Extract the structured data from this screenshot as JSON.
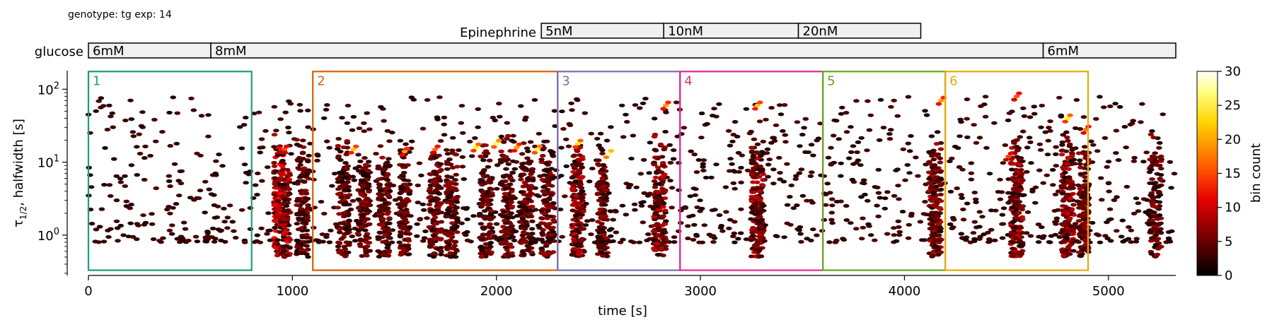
{
  "header": {
    "text": "genotype: tg  exp: 14"
  },
  "treatments": [
    {
      "name": "Epinephrine",
      "segments": [
        {
          "label": "5nM",
          "start": 2220,
          "end": 2820
        },
        {
          "label": "10nM",
          "start": 2820,
          "end": 3480
        },
        {
          "label": "20nM",
          "start": 3480,
          "end": 4080
        }
      ]
    },
    {
      "name": "glucose",
      "segments": [
        {
          "label": "6mM",
          "start": 0,
          "end": 600
        },
        {
          "label": "8mM",
          "start": 600,
          "end": 4680
        },
        {
          "label": "6mM",
          "start": 4680,
          "end": 5330
        }
      ]
    }
  ],
  "chart_data": {
    "type": "heatmap",
    "xlabel": "time [s]",
    "ylabel_main": "τ",
    "ylabel_sub": "1/2",
    "ylabel_rest": ", halfwidth [s]",
    "xlim": [
      0,
      5330
    ],
    "ylim": [
      0.28,
      180
    ],
    "yscale": "log",
    "xticks": [
      {
        "value": 0,
        "label": "0"
      },
      {
        "value": 1000,
        "label": "1000"
      },
      {
        "value": 2000,
        "label": "2000"
      },
      {
        "value": 3000,
        "label": "3000"
      },
      {
        "value": 4000,
        "label": "4000"
      },
      {
        "value": 5000,
        "label": "5000"
      }
    ],
    "yticks": [
      {
        "value": 1,
        "base": "10",
        "exp": "0"
      },
      {
        "value": 10,
        "base": "10",
        "exp": "1"
      },
      {
        "value": 100,
        "base": "10",
        "exp": "2"
      }
    ],
    "colorbar": {
      "label": "bin count",
      "min": 0,
      "max": 30,
      "ticks": [
        "0",
        "5",
        "10",
        "15",
        "20",
        "25",
        "30"
      ]
    },
    "regions": [
      {
        "label": "1",
        "x0": 0,
        "x1": 800,
        "color": "#1b9e77"
      },
      {
        "label": "2",
        "x0": 1100,
        "x1": 2300,
        "color": "#d95f02"
      },
      {
        "label": "3",
        "x0": 2300,
        "x1": 2900,
        "color": "#7570b3"
      },
      {
        "label": "4",
        "x0": 2900,
        "x1": 3600,
        "color": "#e7298a"
      },
      {
        "label": "5",
        "x0": 3600,
        "x1": 4200,
        "color": "#66a61e"
      },
      {
        "label": "6",
        "x0": 4200,
        "x1": 4900,
        "color": "#e6ab02"
      }
    ],
    "regions_y": [
      0.33,
      175
    ],
    "hot_bins": [
      {
        "t": 1300,
        "tau": 15,
        "count": 20
      },
      {
        "t": 1550,
        "tau": 14,
        "count": 18
      },
      {
        "t": 1700,
        "tau": 15,
        "count": 16
      },
      {
        "t": 1900,
        "tau": 16,
        "count": 22
      },
      {
        "t": 2000,
        "tau": 18,
        "count": 25
      },
      {
        "t": 2100,
        "tau": 16,
        "count": 18
      },
      {
        "t": 2200,
        "tau": 15,
        "count": 24
      },
      {
        "t": 2400,
        "tau": 18,
        "count": 22
      },
      {
        "t": 2550,
        "tau": 13,
        "count": 28
      },
      {
        "t": 2830,
        "tau": 60,
        "count": 18
      },
      {
        "t": 3280,
        "tau": 60,
        "count": 20
      },
      {
        "t": 4180,
        "tau": 70,
        "count": 18
      },
      {
        "t": 4550,
        "tau": 80,
        "count": 15
      },
      {
        "t": 4800,
        "tau": 40,
        "count": 22
      },
      {
        "t": 4890,
        "tau": 28,
        "count": 16
      },
      {
        "t": 4510,
        "tau": 12,
        "count": 14
      },
      {
        "t": 960,
        "tau": 15,
        "count": 14
      }
    ],
    "clusters": [
      {
        "t": 950,
        "spread": 40,
        "density": 5
      },
      {
        "t": 1050,
        "spread": 30,
        "density": 3
      },
      {
        "t": 1250,
        "spread": 30,
        "density": 3
      },
      {
        "t": 1350,
        "spread": 30,
        "density": 3
      },
      {
        "t": 1450,
        "spread": 30,
        "density": 3
      },
      {
        "t": 1550,
        "spread": 25,
        "density": 3
      },
      {
        "t": 1700,
        "spread": 30,
        "density": 3
      },
      {
        "t": 1780,
        "spread": 30,
        "density": 3
      },
      {
        "t": 1950,
        "spread": 30,
        "density": 3
      },
      {
        "t": 2050,
        "spread": 30,
        "density": 3
      },
      {
        "t": 2150,
        "spread": 30,
        "density": 3
      },
      {
        "t": 2250,
        "spread": 30,
        "density": 3
      },
      {
        "t": 2400,
        "spread": 30,
        "density": 4
      },
      {
        "t": 2520,
        "spread": 25,
        "density": 3
      },
      {
        "t": 2800,
        "spread": 30,
        "density": 4
      },
      {
        "t": 3280,
        "spread": 30,
        "density": 4
      },
      {
        "t": 4150,
        "spread": 30,
        "density": 4
      },
      {
        "t": 4550,
        "spread": 30,
        "density": 4
      },
      {
        "t": 4800,
        "spread": 30,
        "density": 4
      },
      {
        "t": 4880,
        "spread": 25,
        "density": 3
      },
      {
        "t": 5230,
        "spread": 30,
        "density": 3
      }
    ]
  }
}
